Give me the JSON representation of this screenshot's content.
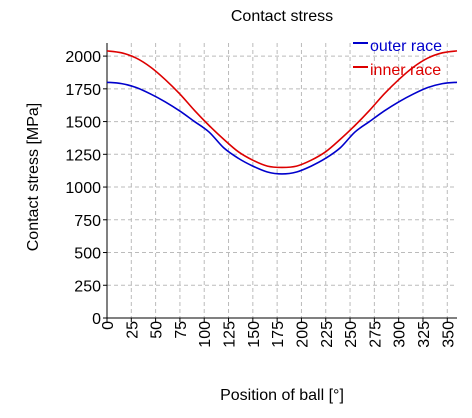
{
  "chart_data": {
    "type": "line",
    "title": "Contact stress",
    "xlabel": "Position of ball [°]",
    "ylabel": "Contact stress [MPa]",
    "xlim": [
      0,
      360
    ],
    "ylim": [
      0,
      2100
    ],
    "xticks": [
      0,
      25,
      50,
      75,
      100,
      125,
      150,
      175,
      200,
      225,
      250,
      275,
      300,
      325,
      350
    ],
    "yticks": [
      0,
      250,
      500,
      750,
      1000,
      1250,
      1500,
      1750,
      2000
    ],
    "grid": true,
    "legend_position": "top-right",
    "x": [
      0,
      15,
      30,
      45,
      60,
      75,
      90,
      105,
      120,
      135,
      150,
      165,
      180,
      195,
      210,
      225,
      240,
      255,
      270,
      285,
      300,
      315,
      330,
      345,
      360
    ],
    "series": [
      {
        "name": "outer race",
        "color": "#0000cc",
        "values": [
          1800,
          1790,
          1760,
          1710,
          1650,
          1580,
          1500,
          1420,
          1300,
          1220,
          1160,
          1115,
          1100,
          1115,
          1160,
          1220,
          1300,
          1420,
          1500,
          1580,
          1650,
          1710,
          1760,
          1790,
          1800
        ]
      },
      {
        "name": "inner race",
        "color": "#dd0000",
        "values": [
          2040,
          2025,
          1985,
          1915,
          1820,
          1710,
          1585,
          1470,
          1365,
          1270,
          1205,
          1160,
          1150,
          1160,
          1205,
          1270,
          1365,
          1470,
          1585,
          1710,
          1820,
          1915,
          1985,
          2025,
          2040
        ]
      }
    ]
  }
}
